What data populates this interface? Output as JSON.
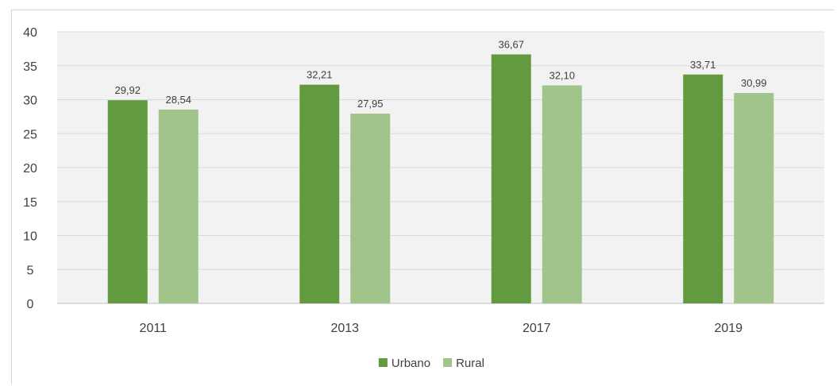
{
  "chart_data": {
    "type": "bar",
    "title": "",
    "xlabel": "",
    "ylabel": "",
    "categories": [
      "2011",
      "2013",
      "2017",
      "2019"
    ],
    "ylim": [
      0,
      40
    ],
    "yticks": [
      0,
      5,
      10,
      15,
      20,
      25,
      30,
      35,
      40
    ],
    "ytick_labels": [
      "0",
      "5",
      "10",
      "15",
      "20",
      "25",
      "30",
      "35",
      "40"
    ],
    "grid": true,
    "legend_position": "bottom",
    "series": [
      {
        "name": "Urbano",
        "color": "#629a3f",
        "values": [
          29.92,
          32.21,
          36.67,
          33.71
        ],
        "labels": [
          "29,92",
          "32,21",
          "36,67",
          "33,71"
        ]
      },
      {
        "name": "Rural",
        "color": "#a1c48a",
        "values": [
          28.54,
          27.95,
          32.1,
          30.99
        ],
        "labels": [
          "28,54",
          "27,95",
          "32,10",
          "30,99"
        ]
      }
    ]
  }
}
